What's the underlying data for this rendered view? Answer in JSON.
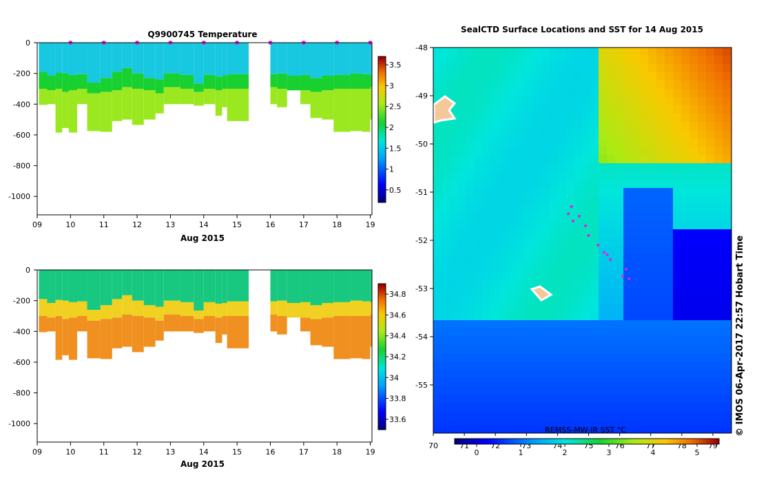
{
  "chart_data": [
    {
      "id": "temperature",
      "type": "heatmap",
      "title": "Q9900745  Temperature",
      "xlabel": "Aug 2015",
      "x_ticks": [
        "09",
        "10",
        "11",
        "12",
        "13",
        "14",
        "15",
        "16",
        "17",
        "18",
        "19"
      ],
      "y_ticks": [
        0,
        -200,
        -400,
        -600,
        -800,
        -1000
      ],
      "ylim": [
        -1120,
        0
      ],
      "xlim": [
        9,
        19.05
      ],
      "colorbar_ticks": [
        "0.5",
        "1",
        "1.5",
        "2",
        "2.5",
        "3",
        "3.5"
      ],
      "colorbar_range": [
        0.2,
        3.7
      ],
      "layer_values": [
        1.1,
        1.8,
        2.3
      ],
      "profiles": [
        {
          "day": 9.05,
          "l1": -190,
          "l2": -300,
          "bottom": -405
        },
        {
          "day": 9.3,
          "l1": -215,
          "l2": -310,
          "bottom": -400
        },
        {
          "day": 9.55,
          "l1": -195,
          "l2": -300,
          "bottom": -585
        },
        {
          "day": 9.75,
          "l1": -200,
          "l2": -320,
          "bottom": -555
        },
        {
          "day": 9.95,
          "l1": -210,
          "l2": -310,
          "bottom": -585
        },
        {
          "day": 10.2,
          "l1": -205,
          "l2": -300,
          "bottom": -400
        },
        {
          "day": 10.5,
          "l1": -260,
          "l2": -330,
          "bottom": -575
        },
        {
          "day": 10.9,
          "l1": -230,
          "l2": -320,
          "bottom": -580
        },
        {
          "day": 11.25,
          "l1": -190,
          "l2": -310,
          "bottom": -510
        },
        {
          "day": 11.55,
          "l1": -165,
          "l2": -290,
          "bottom": -500
        },
        {
          "day": 11.85,
          "l1": -200,
          "l2": -300,
          "bottom": -535
        },
        {
          "day": 12.2,
          "l1": -230,
          "l2": -310,
          "bottom": -500
        },
        {
          "day": 12.55,
          "l1": -240,
          "l2": -330,
          "bottom": -460
        },
        {
          "day": 12.8,
          "l1": -200,
          "l2": -290,
          "bottom": -400
        },
        {
          "day": 13.3,
          "l1": -210,
          "l2": -300,
          "bottom": -400
        },
        {
          "day": 13.7,
          "l1": -265,
          "l2": -320,
          "bottom": -410
        },
        {
          "day": 14.0,
          "l1": -210,
          "l2": -300,
          "bottom": -400
        },
        {
          "day": 14.35,
          "l1": -220,
          "l2": -310,
          "bottom": -475
        },
        {
          "day": 14.55,
          "l1": -215,
          "l2": -300,
          "bottom": -420
        },
        {
          "day": 14.7,
          "l1": -205,
          "l2": -300,
          "bottom": -510
        },
        {
          "day": 16.0,
          "l1": -205,
          "l2": -290,
          "bottom": -400
        },
        {
          "day": 16.2,
          "l1": -200,
          "l2": -300,
          "bottom": -420
        },
        {
          "day": 16.5,
          "l1": -215,
          "l2": -310,
          "bottom": -300
        },
        {
          "day": 16.9,
          "l1": -210,
          "l2": -310,
          "bottom": -400
        },
        {
          "day": 17.2,
          "l1": -230,
          "l2": -320,
          "bottom": -490
        },
        {
          "day": 17.55,
          "l1": -215,
          "l2": -310,
          "bottom": -500
        },
        {
          "day": 17.9,
          "l1": -210,
          "l2": -300,
          "bottom": -580
        },
        {
          "day": 18.4,
          "l1": -200,
          "l2": -300,
          "bottom": -575
        },
        {
          "day": 18.75,
          "l1": -205,
          "l2": -300,
          "bottom": -580
        },
        {
          "day": 19.0,
          "l1": -210,
          "l2": -290,
          "bottom": -500
        }
      ],
      "gap": [
        15.35,
        15.95
      ],
      "surface_markers": [
        10.0,
        11.0,
        12.0,
        13.0,
        14.0,
        15.0,
        16.0,
        17.0,
        18.0,
        19.0
      ],
      "colors": {
        "upper": "#18c8e0",
        "thermocline": "#18d030",
        "lower": "#9ce820",
        "cb_low": "#000080",
        "cb_high": "#c01010"
      }
    },
    {
      "id": "salinity",
      "type": "heatmap",
      "title": "",
      "xlabel": "Aug 2015",
      "x_ticks": [
        "09",
        "10",
        "11",
        "12",
        "13",
        "14",
        "15",
        "16",
        "17",
        "18",
        "19"
      ],
      "y_ticks": [
        0,
        -200,
        -400,
        -600,
        -800,
        -1000
      ],
      "ylim": [
        -1120,
        0
      ],
      "xlim": [
        9,
        19.05
      ],
      "colorbar_ticks": [
        "33.6",
        "33.8",
        "34",
        "34.2",
        "34.4",
        "34.6",
        "34.8"
      ],
      "colorbar_range": [
        33.5,
        34.9
      ],
      "layer_values": [
        34.05,
        34.45,
        34.65
      ],
      "gap": [
        15.35,
        15.95
      ],
      "colors": {
        "upper": "#18c880",
        "halocline": "#f0d020",
        "lower": "#f09020"
      }
    },
    {
      "id": "sst_map",
      "type": "heatmap",
      "title": "SealCTD Surface Locations and SST for 14 Aug 2015",
      "y_ticks": [
        "-48",
        "-49",
        "-50",
        "-51",
        "-52",
        "-53",
        "-54",
        "-55"
      ],
      "ylim": [
        -56,
        -48
      ],
      "xlim": [
        70,
        79.6
      ],
      "x_ticks_top": [
        "70",
        "71",
        "72",
        "73",
        "74",
        "75",
        "76",
        "77",
        "78",
        "79"
      ],
      "x_ticks_bottom": [
        "0",
        "1",
        "2",
        "3",
        "4",
        "5"
      ],
      "colorbar_range": [
        -0.5,
        5.5
      ],
      "colorbar_label": "REMSS-MW-IR SST °C",
      "track_points": [
        [
          74.45,
          -51.3
        ],
        [
          74.35,
          -51.45
        ],
        [
          74.5,
          -51.6
        ],
        [
          74.7,
          -51.5
        ],
        [
          74.9,
          -51.7
        ],
        [
          75.0,
          -51.9
        ],
        [
          75.3,
          -52.1
        ],
        [
          75.5,
          -52.25
        ],
        [
          75.6,
          -52.3
        ],
        [
          75.7,
          -52.4
        ],
        [
          76.2,
          -52.6
        ],
        [
          76.3,
          -52.8
        ],
        [
          76.1,
          -52.75
        ]
      ],
      "credit": "© IMOS 06-Apr-2017 22:57 Hobart Time"
    }
  ]
}
